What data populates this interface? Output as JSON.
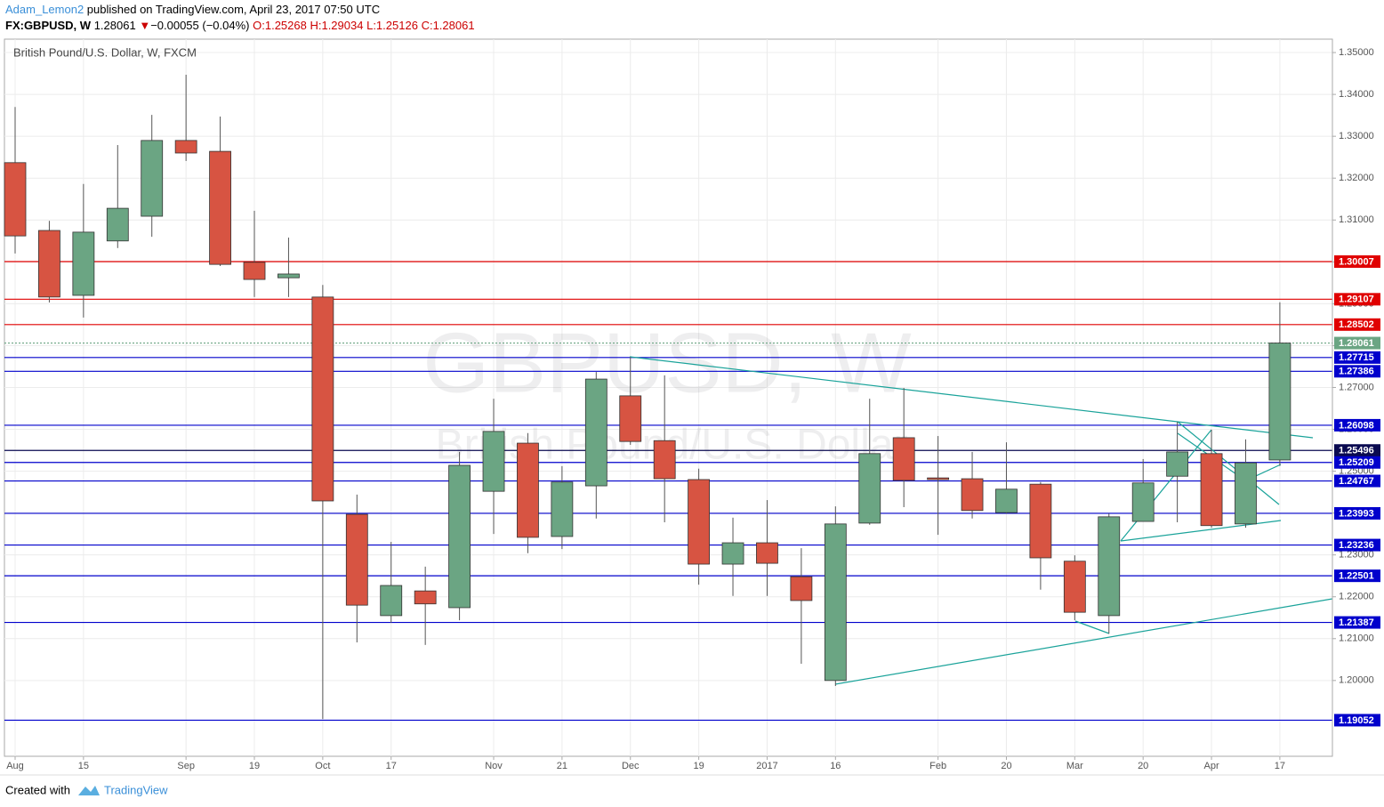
{
  "header": {
    "author": "Adam_Lemon2",
    "published": "published on TradingView.com, April 23, 2017 07:50 UTC",
    "symbol": "FX:GBPUSD, W",
    "last": "1.28061",
    "change_arrow": "▼",
    "change": "−0.00055 (−0.04%)",
    "open": "O:1.25268",
    "high": "H:1.29034",
    "low": "L:1.25126",
    "close": "C:1.28061"
  },
  "footer": {
    "created": "Created with",
    "brand": "TradingView"
  },
  "chart_data": {
    "type": "candlestick",
    "title": "British Pound/U.S. Dollar, W, FXCM",
    "watermark": "GBPUSD, W",
    "watermark_sub": "British Pound/U.S. Dollar",
    "categories": [
      "Aug",
      null,
      "15",
      null,
      null,
      "Sep",
      null,
      "19",
      null,
      "Oct",
      null,
      "17",
      null,
      null,
      "Nov",
      null,
      "21",
      null,
      "Dec",
      null,
      "19",
      null,
      "2017",
      null,
      "16",
      null,
      null,
      "Feb",
      null,
      "20",
      null,
      "Mar",
      null,
      "20",
      null,
      "Apr",
      null,
      "17"
    ],
    "open": [
      1.3237,
      1.3075,
      1.292,
      1.305,
      1.3109,
      1.329,
      1.3264,
      1.2999,
      1.2962,
      1.2916,
      1.2397,
      1.2155,
      1.2214,
      1.2174,
      1.2452,
      1.2567,
      1.2344,
      1.2465,
      1.268,
      1.2573,
      1.248,
      1.2278,
      1.2329,
      1.2248,
      1.2,
      1.2376,
      1.258,
      1.2484,
      1.2482,
      1.2401,
      1.2469,
      1.2285,
      1.2155,
      1.238,
      1.2488,
      1.2542,
      1.2374,
      1.25268
    ],
    "high": [
      1.337,
      1.3098,
      1.3186,
      1.3279,
      1.3351,
      1.3447,
      1.3347,
      1.3122,
      1.3058,
      1.2945,
      1.2444,
      1.2331,
      1.2272,
      1.2546,
      1.2673,
      1.2591,
      1.2512,
      1.2737,
      1.2773,
      1.2729,
      1.2506,
      1.2389,
      1.2431,
      1.2316,
      1.2416,
      1.2673,
      1.2699,
      1.2584,
      1.2546,
      1.2569,
      1.2474,
      1.2299,
      1.2399,
      1.2529,
      1.2618,
      1.2599,
      1.2576,
      1.29034
    ],
    "low": [
      1.302,
      1.2903,
      1.2867,
      1.3033,
      1.306,
      1.3241,
      1.299,
      1.2916,
      1.2916,
      1.1908,
      1.2091,
      1.2138,
      1.2085,
      1.2144,
      1.235,
      1.2304,
      1.2314,
      1.2387,
      1.2563,
      1.2378,
      1.2229,
      1.2202,
      1.2202,
      1.204,
      1.1987,
      1.2372,
      1.2414,
      1.2348,
      1.2387,
      1.2399,
      1.2217,
      1.2144,
      1.2112,
      1.238,
      1.2378,
      1.2365,
      1.2365,
      1.25126
    ],
    "close": [
      1.3062,
      1.2916,
      1.3071,
      1.3128,
      1.329,
      1.326,
      1.2994,
      1.2958,
      1.2971,
      1.2429,
      1.218,
      1.2227,
      1.2183,
      1.2514,
      1.2595,
      1.2342,
      1.2474,
      1.272,
      1.2571,
      1.2482,
      1.2278,
      1.2329,
      1.228,
      1.2191,
      1.2374,
      1.2542,
      1.2478,
      1.248,
      1.2406,
      1.2457,
      1.2293,
      1.2163,
      1.2391,
      1.2472,
      1.2546,
      1.237,
      1.252,
      1.28061
    ],
    "up_color": "#6ba583",
    "down_color": "#d75442",
    "ylim": [
      1.1819,
      1.3532
    ],
    "yticks": [
      {
        "value": 1.35,
        "label": "1.35000"
      },
      {
        "value": 1.34,
        "label": "1.34000"
      },
      {
        "value": 1.33,
        "label": "1.33000"
      },
      {
        "value": 1.32,
        "label": "1.32000"
      },
      {
        "value": 1.31,
        "label": "1.31000"
      },
      {
        "value": 1.3,
        "label": "1.30000"
      },
      {
        "value": 1.29,
        "label": "1.29000"
      },
      {
        "value": 1.28,
        "label": "1.28000"
      },
      {
        "value": 1.27,
        "label": "1.27000"
      },
      {
        "value": 1.26,
        "label": "1.26000"
      },
      {
        "value": 1.25,
        "label": "1.25000"
      },
      {
        "value": 1.24,
        "label": "1.24000"
      },
      {
        "value": 1.23,
        "label": "1.23000"
      },
      {
        "value": 1.22,
        "label": "1.22000"
      },
      {
        "value": 1.21,
        "label": "1.21000"
      },
      {
        "value": 1.2,
        "label": "1.20000"
      }
    ],
    "grid": true,
    "price_lines": [
      {
        "value": 1.30007,
        "color": "#e00000"
      },
      {
        "value": 1.29107,
        "color": "#e00000"
      },
      {
        "value": 1.28502,
        "color": "#e00000"
      },
      {
        "value": 1.28061,
        "color": "#6ba583",
        "style": "dotted"
      },
      {
        "value": 1.27715,
        "color": "#0000cc"
      },
      {
        "value": 1.27386,
        "color": "#0000cc"
      },
      {
        "value": 1.26098,
        "color": "#0000cc"
      },
      {
        "value": 1.25496,
        "color": "#0a0a50"
      },
      {
        "value": 1.25209,
        "color": "#0000cc"
      },
      {
        "value": 1.24767,
        "color": "#0000cc"
      },
      {
        "value": 1.23993,
        "color": "#0000cc"
      },
      {
        "value": 1.23236,
        "color": "#0000cc"
      },
      {
        "value": 1.22501,
        "color": "#0000cc"
      },
      {
        "value": 1.21387,
        "color": "#0000cc"
      },
      {
        "value": 1.19052,
        "color": "#0000cc"
      }
    ]
  }
}
